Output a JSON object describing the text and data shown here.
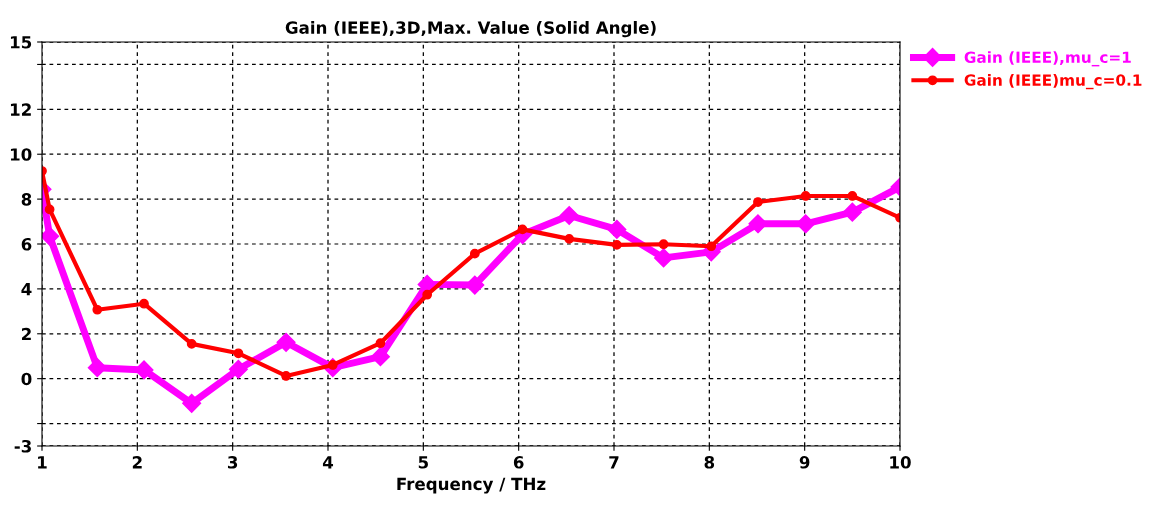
{
  "chart_data": {
    "type": "line",
    "title": "Gain (IEEE),3D,Max. Value (Solid Angle)",
    "xlabel": "Frequency / THz",
    "x": [
      1,
      1.08,
      1.58,
      2.07,
      2.57,
      3.06,
      3.56,
      4.05,
      4.55,
      5.04,
      5.54,
      6.04,
      6.53,
      7.03,
      7.52,
      8.02,
      8.51,
      9.01,
      9.5,
      10
    ],
    "series": [
      {
        "name": "Gain (IEEE),mu_c=1",
        "color": "#ff00ff",
        "marker": "diamond",
        "values": [
          8.44,
          6.35,
          0.49,
          0.39,
          -1.1,
          0.42,
          1.62,
          0.49,
          0.98,
          4.2,
          4.17,
          6.42,
          7.27,
          6.65,
          5.38,
          5.65,
          6.9,
          6.9,
          7.42,
          8.54
        ]
      },
      {
        "name": "Gain (IEEE)mu_c=0.1",
        "color": "#ff0000",
        "marker": "circle",
        "values": [
          9.25,
          7.54,
          3.07,
          3.34,
          1.55,
          1.13,
          0.12,
          0.61,
          1.58,
          3.74,
          5.57,
          6.65,
          6.23,
          5.96,
          5.99,
          5.9,
          7.87,
          8.14,
          8.14,
          7.17
        ]
      }
    ],
    "xlim": [
      1,
      10
    ],
    "xticks": [
      1,
      2,
      3,
      4,
      5,
      6,
      7,
      8,
      9,
      10
    ],
    "ylim": [
      -3,
      15
    ],
    "yticks": [
      -3,
      {
        "value": -2,
        "label": null
      },
      0,
      2,
      4,
      6,
      8,
      10,
      12,
      {
        "value": 14,
        "label": null
      },
      15
    ],
    "grid": true,
    "legend": "top right",
    "line_style": "solid"
  }
}
